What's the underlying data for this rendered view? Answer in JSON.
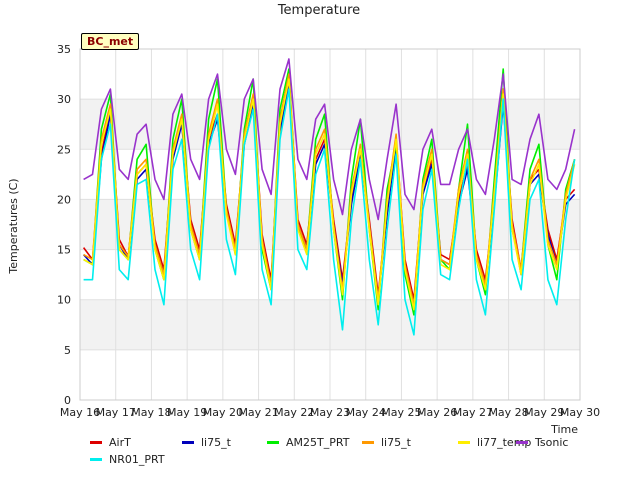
{
  "chart_data": {
    "type": "line",
    "title": "Temperature",
    "badge": "BC_met",
    "xlabel": "Time",
    "ylabel": "Temperatures (C)",
    "ylim": [
      0,
      35
    ],
    "xlim": [
      16,
      30
    ],
    "yticks": [
      0,
      5,
      10,
      15,
      20,
      25,
      30,
      35
    ],
    "xticks": [
      {
        "value": 16,
        "label": "May 16"
      },
      {
        "value": 17,
        "label": "May 17"
      },
      {
        "value": 18,
        "label": "May 18"
      },
      {
        "value": 19,
        "label": "May 19"
      },
      {
        "value": 20,
        "label": "May 20"
      },
      {
        "value": 21,
        "label": "May 21"
      },
      {
        "value": 22,
        "label": "May 22"
      },
      {
        "value": 23,
        "label": "May 23"
      },
      {
        "value": 24,
        "label": "May 24"
      },
      {
        "value": 25,
        "label": "May 25"
      },
      {
        "value": 26,
        "label": "May 26"
      },
      {
        "value": 27,
        "label": "May 27"
      },
      {
        "value": 28,
        "label": "May 28"
      },
      {
        "value": 29,
        "label": "May 29"
      },
      {
        "value": 30,
        "label": "May 30"
      }
    ],
    "grid": true,
    "banded_background": true,
    "legend_position": "bottom",
    "series": [
      {
        "name": "AirT",
        "color": "#dd0000",
        "x": [
          16.1,
          16.35,
          16.6,
          16.85,
          17.1,
          17.35,
          17.6,
          17.85,
          18.1,
          18.35,
          18.6,
          18.85,
          19.1,
          19.35,
          19.6,
          19.85,
          20.1,
          20.35,
          20.6,
          20.85,
          21.1,
          21.35,
          21.6,
          21.85,
          22.1,
          22.35,
          22.6,
          22.85,
          23.1,
          23.35,
          23.6,
          23.85,
          24.1,
          24.35,
          24.6,
          24.85,
          25.1,
          25.35,
          25.6,
          25.85,
          26.1,
          26.35,
          26.6,
          26.85,
          27.1,
          27.35,
          27.6,
          27.85,
          28.1,
          28.35,
          28.6,
          28.85,
          29.1,
          29.35,
          29.6,
          29.85
        ],
        "y": [
          15.2,
          14.0,
          24.5,
          29.0,
          16.0,
          14.3,
          22.5,
          23.5,
          16.0,
          13.0,
          24.5,
          28.0,
          18.0,
          15.0,
          26.0,
          28.5,
          19.5,
          15.5,
          26.0,
          30.0,
          16.5,
          12.0,
          27.0,
          32.0,
          18.0,
          15.5,
          24.0,
          26.0,
          18.0,
          12.0,
          20.0,
          25.0,
          18.0,
          10.5,
          19.0,
          26.0,
          14.0,
          10.0,
          21.0,
          24.0,
          14.5,
          14.0,
          20.0,
          23.5,
          15.0,
          12.0,
          20.0,
          30.0,
          18.0,
          13.0,
          22.0,
          23.0,
          17.0,
          14.0,
          20.0,
          21.0
        ]
      },
      {
        "name": "li75_t",
        "color": "#0000bb",
        "x": [
          16.1,
          16.35,
          16.6,
          16.85,
          17.1,
          17.35,
          17.6,
          17.85,
          18.1,
          18.35,
          18.6,
          18.85,
          19.1,
          19.35,
          19.6,
          19.85,
          20.1,
          20.35,
          20.6,
          20.85,
          21.1,
          21.35,
          21.6,
          21.85,
          22.1,
          22.35,
          22.6,
          22.85,
          23.1,
          23.35,
          23.6,
          23.85,
          24.1,
          24.35,
          24.6,
          24.85,
          25.1,
          25.35,
          25.6,
          25.85,
          26.1,
          26.35,
          26.6,
          26.85,
          27.1,
          27.35,
          27.6,
          27.85,
          28.1,
          28.35,
          28.6,
          28.85,
          29.1,
          29.35,
          29.6,
          29.85
        ],
        "y": [
          14.5,
          13.5,
          24.0,
          28.5,
          15.5,
          14.0,
          22.0,
          23.0,
          15.5,
          12.5,
          24.0,
          27.5,
          17.5,
          14.5,
          25.5,
          28.0,
          19.0,
          15.0,
          25.5,
          29.5,
          16.0,
          11.5,
          26.5,
          31.5,
          17.5,
          15.0,
          23.5,
          25.5,
          17.5,
          11.5,
          19.5,
          24.5,
          17.5,
          10.0,
          18.5,
          25.5,
          13.5,
          9.5,
          20.5,
          23.5,
          14.0,
          13.5,
          19.5,
          23.0,
          14.5,
          11.5,
          19.5,
          29.5,
          17.5,
          12.5,
          21.5,
          22.5,
          16.5,
          13.5,
          19.5,
          20.5
        ]
      },
      {
        "name": "AM25T_PRT",
        "color": "#00ee00",
        "x": [
          16.1,
          16.35,
          16.6,
          16.85,
          17.1,
          17.35,
          17.6,
          17.85,
          18.1,
          18.35,
          18.6,
          18.85,
          19.1,
          19.35,
          19.6,
          19.85,
          20.1,
          20.35,
          20.6,
          20.85,
          21.1,
          21.35,
          21.6,
          21.85,
          22.1,
          22.35,
          22.6,
          22.85,
          23.1,
          23.35,
          23.6,
          23.85,
          24.1,
          24.35,
          24.6,
          24.85,
          25.1,
          25.35,
          25.6,
          25.85,
          26.1,
          26.35,
          26.6,
          26.85,
          27.1,
          27.35,
          27.6,
          27.85,
          28.1,
          28.35,
          28.6,
          28.85,
          29.1,
          29.35,
          29.6,
          29.85
        ],
        "y": [
          14.0,
          13.5,
          27.0,
          30.5,
          15.0,
          14.0,
          24.0,
          25.5,
          15.0,
          12.0,
          26.0,
          30.0,
          17.0,
          14.0,
          28.0,
          32.0,
          19.0,
          14.5,
          27.0,
          32.0,
          15.0,
          11.0,
          29.0,
          33.0,
          17.0,
          15.0,
          26.0,
          28.5,
          17.0,
          10.0,
          22.0,
          28.0,
          17.0,
          9.0,
          21.0,
          25.5,
          12.5,
          8.5,
          22.0,
          26.0,
          14.0,
          13.0,
          21.0,
          27.5,
          14.0,
          10.5,
          22.0,
          33.0,
          17.0,
          13.0,
          23.0,
          25.5,
          15.5,
          12.0,
          21.0,
          24.0
        ]
      },
      {
        "name": "li75_t",
        "color": "#ff9900",
        "x": [
          16.1,
          16.35,
          16.6,
          16.85,
          17.1,
          17.35,
          17.6,
          17.85,
          18.1,
          18.35,
          18.6,
          18.85,
          19.1,
          19.35,
          19.6,
          19.85,
          20.1,
          20.35,
          20.6,
          20.85,
          21.1,
          21.35,
          21.6,
          21.85,
          22.1,
          22.35,
          22.6,
          22.85,
          23.1,
          23.35,
          23.6,
          23.85,
          24.1,
          24.35,
          24.6,
          24.85,
          25.1,
          25.35,
          25.6,
          25.85,
          26.1,
          26.35,
          26.6,
          26.85,
          27.1,
          27.35,
          27.6,
          27.85,
          28.1,
          28.35,
          28.6,
          28.85,
          29.1,
          29.35,
          29.6,
          29.85
        ],
        "y": [
          14.5,
          14.0,
          26.0,
          29.5,
          15.5,
          14.3,
          23.0,
          24.0,
          15.5,
          12.5,
          25.0,
          28.5,
          17.5,
          14.5,
          26.5,
          30.0,
          19.0,
          15.0,
          26.5,
          30.5,
          16.0,
          11.5,
          28.0,
          32.5,
          17.5,
          15.0,
          25.0,
          27.0,
          17.5,
          11.0,
          21.0,
          25.5,
          17.5,
          10.0,
          20.0,
          26.5,
          13.5,
          9.5,
          21.5,
          25.0,
          14.0,
          13.5,
          21.0,
          25.0,
          14.5,
          11.5,
          21.0,
          31.0,
          17.5,
          13.0,
          22.0,
          24.0,
          16.0,
          13.5,
          20.5,
          24.0
        ]
      },
      {
        "name": "li77_temp",
        "color": "#ffee00",
        "x": [
          16.1,
          16.35,
          16.6,
          16.85,
          17.1,
          17.35,
          17.6,
          17.85,
          18.1,
          18.35,
          18.6,
          18.85,
          19.1,
          19.35,
          19.6,
          19.85,
          20.1,
          20.35,
          20.6,
          20.85,
          21.1,
          21.35,
          21.6,
          21.85,
          22.1,
          22.35,
          22.6,
          22.85,
          23.1,
          23.35,
          23.6,
          23.85,
          24.1,
          24.35,
          24.6,
          24.85,
          25.1,
          25.35,
          25.6,
          25.85,
          26.1,
          26.35,
          26.6,
          26.85,
          27.1,
          27.35,
          27.6,
          27.85,
          28.1,
          28.35,
          28.6,
          28.85,
          29.1,
          29.35,
          29.6,
          29.85
        ],
        "y": [
          14.0,
          13.5,
          25.5,
          29.0,
          15.0,
          14.0,
          22.5,
          23.5,
          15.0,
          12.0,
          24.5,
          28.0,
          17.0,
          14.0,
          26.0,
          29.5,
          18.5,
          14.5,
          26.0,
          30.0,
          15.5,
          11.0,
          27.5,
          32.0,
          17.0,
          14.5,
          24.5,
          26.5,
          17.0,
          10.5,
          20.5,
          25.0,
          17.0,
          9.5,
          19.5,
          26.0,
          13.0,
          9.0,
          21.0,
          24.5,
          13.5,
          13.0,
          20.5,
          24.5,
          14.0,
          11.0,
          20.5,
          30.5,
          17.0,
          12.5,
          21.5,
          23.5,
          15.5,
          13.0,
          20.0,
          23.5
        ]
      },
      {
        "name": "Tsonic",
        "color": "#9933cc",
        "x": [
          16.1,
          16.35,
          16.6,
          16.85,
          17.1,
          17.35,
          17.6,
          17.85,
          18.1,
          18.35,
          18.6,
          18.85,
          19.1,
          19.35,
          19.6,
          19.85,
          20.1,
          20.35,
          20.6,
          20.85,
          21.1,
          21.35,
          21.6,
          21.85,
          22.1,
          22.35,
          22.6,
          22.85,
          23.1,
          23.35,
          23.6,
          23.85,
          24.1,
          24.35,
          24.6,
          24.85,
          25.1,
          25.35,
          25.6,
          25.85,
          26.1,
          26.35,
          26.6,
          26.85,
          27.1,
          27.35,
          27.6,
          27.85,
          28.1,
          28.35,
          28.6,
          28.85,
          29.1,
          29.35,
          29.6,
          29.85
        ],
        "y": [
          22.0,
          22.5,
          29.0,
          31.0,
          23.0,
          22.0,
          26.5,
          27.5,
          22.0,
          20.0,
          28.5,
          30.5,
          24.0,
          22.0,
          30.0,
          32.5,
          25.0,
          22.5,
          30.0,
          32.0,
          23.0,
          20.5,
          31.0,
          34.0,
          24.0,
          22.0,
          28.0,
          29.5,
          22.0,
          18.5,
          25.0,
          28.0,
          22.0,
          18.0,
          24.0,
          29.5,
          20.5,
          19.0,
          25.0,
          27.0,
          21.5,
          21.5,
          25.0,
          27.0,
          22.0,
          20.5,
          26.0,
          32.5,
          22.0,
          21.5,
          26.0,
          28.5,
          22.0,
          21.0,
          23.0,
          27.0
        ]
      },
      {
        "name": "NR01_PRT",
        "color": "#00eeee",
        "x": [
          16.1,
          16.35,
          16.6,
          16.85,
          17.1,
          17.35,
          17.6,
          17.85,
          18.1,
          18.35,
          18.6,
          18.85,
          19.1,
          19.35,
          19.6,
          19.85,
          20.1,
          20.35,
          20.6,
          20.85,
          21.1,
          21.35,
          21.6,
          21.85,
          22.1,
          22.35,
          22.6,
          22.85,
          23.1,
          23.35,
          23.6,
          23.85,
          24.1,
          24.35,
          24.6,
          24.85,
          25.1,
          25.35,
          25.6,
          25.85,
          26.1,
          26.35,
          26.6,
          26.85,
          27.1,
          27.35,
          27.6,
          27.85,
          28.1,
          28.35,
          28.6,
          28.85,
          29.1,
          29.35,
          29.6,
          29.85
        ],
        "y": [
          12.0,
          12.0,
          24.0,
          27.5,
          13.0,
          12.0,
          21.5,
          22.0,
          13.0,
          9.5,
          23.0,
          26.0,
          15.0,
          12.0,
          25.0,
          28.5,
          16.0,
          12.5,
          25.5,
          29.0,
          13.0,
          9.5,
          26.0,
          31.0,
          15.0,
          13.0,
          22.5,
          25.0,
          14.0,
          7.0,
          18.0,
          24.0,
          14.0,
          7.5,
          17.0,
          24.5,
          10.0,
          6.5,
          19.0,
          23.0,
          12.5,
          12.0,
          19.0,
          24.0,
          12.0,
          8.5,
          19.0,
          30.0,
          14.0,
          11.0,
          20.0,
          22.0,
          12.0,
          9.5,
          18.0,
          24.0
        ]
      }
    ]
  },
  "legend": {
    "entries": [
      {
        "name": "AirT",
        "color": "#dd0000"
      },
      {
        "name": "li75_t",
        "color": "#0000bb"
      },
      {
        "name": "AM25T_PRT",
        "color": "#00ee00"
      },
      {
        "name": "li75_t",
        "color": "#ff9900"
      },
      {
        "name": "li77_temp",
        "color": "#ffee00"
      },
      {
        "name": "Tsonic",
        "color": "#9933cc"
      },
      {
        "name": "NR01_PRT",
        "color": "#00eeee"
      }
    ]
  }
}
